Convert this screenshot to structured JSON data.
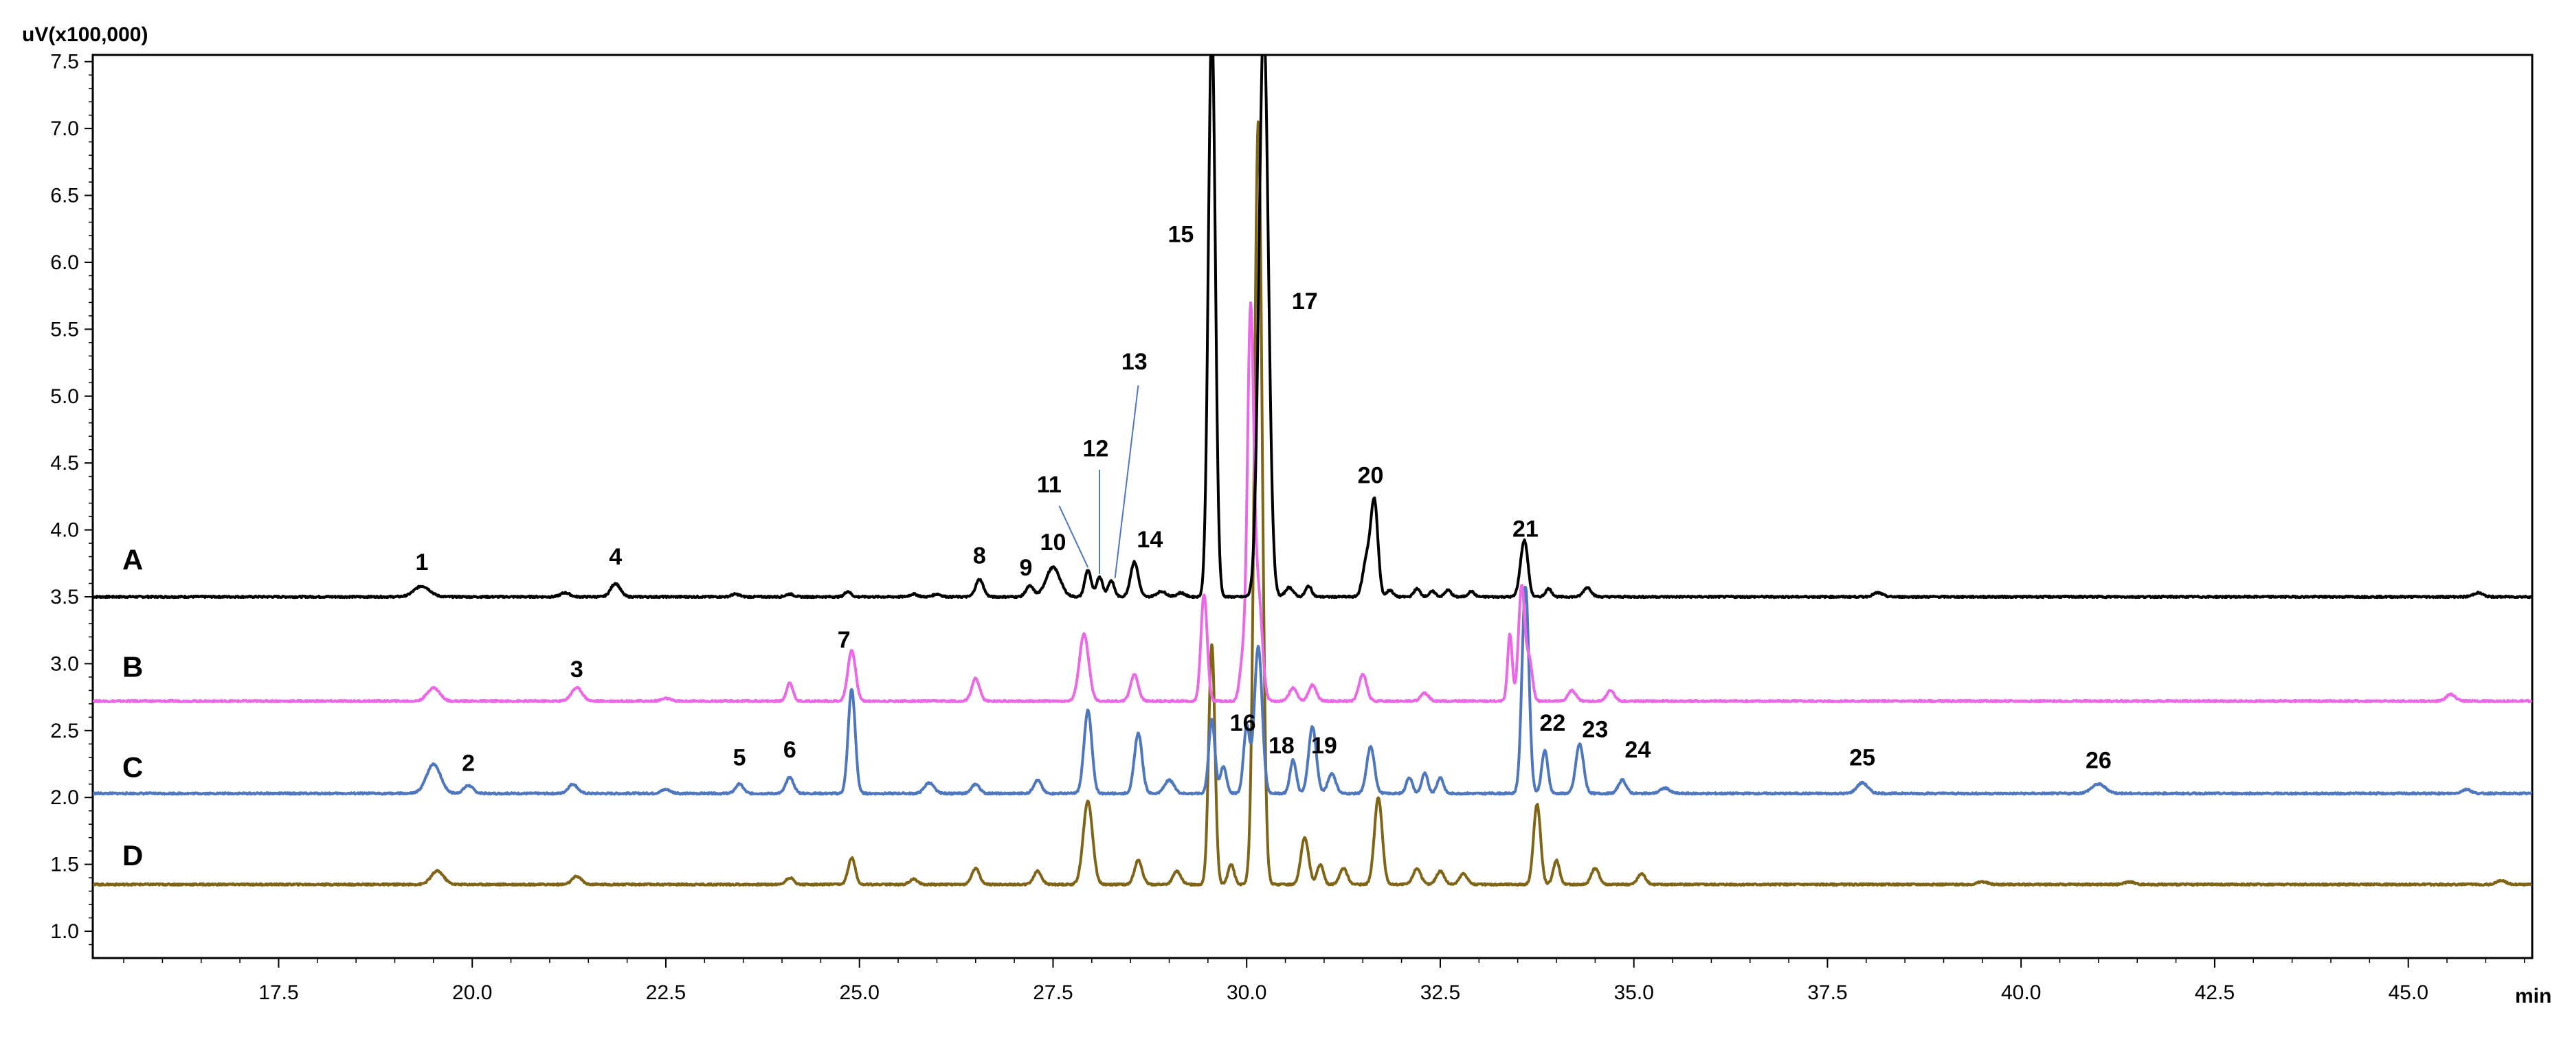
{
  "chart_data": {
    "type": "line",
    "y_unit_label": "uV(x100,000)",
    "x_unit_label": "min",
    "xlim": [
      15.1,
      46.6
    ],
    "ylim": [
      0.8,
      7.55
    ],
    "x_ticks": [
      17.5,
      20.0,
      22.5,
      25.0,
      27.5,
      30.0,
      32.5,
      35.0,
      37.5,
      40.0,
      42.5,
      45.0
    ],
    "x_tick_labels": [
      "17.5",
      "20.0",
      "22.5",
      "25.0",
      "27.5",
      "30.0",
      "32.5",
      "35.0",
      "37.5",
      "40.0",
      "42.5",
      "45.0"
    ],
    "y_ticks": [
      1.0,
      1.5,
      2.0,
      2.5,
      3.0,
      3.5,
      4.0,
      4.5,
      5.0,
      5.5,
      6.0,
      6.5,
      7.0,
      7.5
    ],
    "y_tick_labels": [
      "1.0",
      "1.5",
      "2.0",
      "2.5",
      "3.0",
      "3.5",
      "4.0",
      "4.5",
      "5.0",
      "5.5",
      "6.0",
      "6.5",
      "7.0",
      "7.5"
    ],
    "grid": false,
    "legend": "none",
    "series": [
      {
        "name": "A",
        "color": "#000000",
        "baseline": 3.5,
        "peaks": [
          [
            19.35,
            0.08,
            0.1
          ],
          [
            21.2,
            0.03,
            0.06
          ],
          [
            21.85,
            0.1,
            0.06
          ],
          [
            23.4,
            0.02,
            0.05
          ],
          [
            24.1,
            0.02,
            0.05
          ],
          [
            24.85,
            0.04,
            0.04
          ],
          [
            25.7,
            0.02,
            0.05
          ],
          [
            26.0,
            0.02,
            0.05
          ],
          [
            26.55,
            0.13,
            0.05
          ],
          [
            27.2,
            0.08,
            0.05
          ],
          [
            27.5,
            0.22,
            0.09
          ],
          [
            27.95,
            0.2,
            0.04
          ],
          [
            28.1,
            0.15,
            0.04
          ],
          [
            28.25,
            0.12,
            0.04
          ],
          [
            28.55,
            0.26,
            0.05
          ],
          [
            28.9,
            0.04,
            0.06
          ],
          [
            29.15,
            0.03,
            0.05
          ],
          [
            29.55,
            4.3,
            0.045
          ],
          [
            30.22,
            4.3,
            0.06
          ],
          [
            30.55,
            0.07,
            0.05
          ],
          [
            30.8,
            0.08,
            0.04
          ],
          [
            31.55,
            0.28,
            0.05
          ],
          [
            31.65,
            0.7,
            0.045
          ],
          [
            31.85,
            0.05,
            0.04
          ],
          [
            32.2,
            0.06,
            0.04
          ],
          [
            32.4,
            0.04,
            0.04
          ],
          [
            32.6,
            0.05,
            0.04
          ],
          [
            32.9,
            0.04,
            0.04
          ],
          [
            33.55,
            0.18,
            0.04
          ],
          [
            33.6,
            0.32,
            0.04
          ],
          [
            33.9,
            0.06,
            0.04
          ],
          [
            34.4,
            0.07,
            0.05
          ],
          [
            38.15,
            0.03,
            0.06
          ],
          [
            45.9,
            0.03,
            0.06
          ]
        ]
      },
      {
        "name": "B",
        "color": "#EB69E6",
        "baseline": 2.72,
        "peaks": [
          [
            19.5,
            0.1,
            0.08
          ],
          [
            21.35,
            0.1,
            0.07
          ],
          [
            22.5,
            0.02,
            0.06
          ],
          [
            24.1,
            0.14,
            0.04
          ],
          [
            24.9,
            0.38,
            0.05
          ],
          [
            26.5,
            0.17,
            0.05
          ],
          [
            27.9,
            0.5,
            0.06
          ],
          [
            28.55,
            0.2,
            0.05
          ],
          [
            29.45,
            0.8,
            0.04
          ],
          [
            29.95,
            0.3,
            0.04
          ],
          [
            30.05,
            2.85,
            0.04
          ],
          [
            30.15,
            0.8,
            0.05
          ],
          [
            30.6,
            0.1,
            0.05
          ],
          [
            30.85,
            0.12,
            0.05
          ],
          [
            31.5,
            0.2,
            0.05
          ],
          [
            32.3,
            0.06,
            0.05
          ],
          [
            33.4,
            0.5,
            0.03
          ],
          [
            33.55,
            0.85,
            0.04
          ],
          [
            33.65,
            0.3,
            0.04
          ],
          [
            34.2,
            0.08,
            0.05
          ],
          [
            34.7,
            0.08,
            0.05
          ],
          [
            45.55,
            0.05,
            0.06
          ]
        ]
      },
      {
        "name": "C",
        "color": "#4F77BE",
        "baseline": 2.03,
        "peaks": [
          [
            19.5,
            0.22,
            0.09
          ],
          [
            19.95,
            0.06,
            0.06
          ],
          [
            21.3,
            0.07,
            0.06
          ],
          [
            22.5,
            0.03,
            0.06
          ],
          [
            23.45,
            0.07,
            0.05
          ],
          [
            24.1,
            0.12,
            0.05
          ],
          [
            24.9,
            0.78,
            0.045
          ],
          [
            25.9,
            0.08,
            0.06
          ],
          [
            26.5,
            0.07,
            0.05
          ],
          [
            27.3,
            0.1,
            0.05
          ],
          [
            27.95,
            0.62,
            0.05
          ],
          [
            28.6,
            0.45,
            0.05
          ],
          [
            29.0,
            0.1,
            0.06
          ],
          [
            29.55,
            0.55,
            0.04
          ],
          [
            29.7,
            0.2,
            0.04
          ],
          [
            30.0,
            0.5,
            0.04
          ],
          [
            30.15,
            1.1,
            0.05
          ],
          [
            30.6,
            0.25,
            0.04
          ],
          [
            30.85,
            0.5,
            0.05
          ],
          [
            31.1,
            0.15,
            0.05
          ],
          [
            31.6,
            0.35,
            0.05
          ],
          [
            32.1,
            0.12,
            0.04
          ],
          [
            32.3,
            0.15,
            0.04
          ],
          [
            32.5,
            0.12,
            0.04
          ],
          [
            33.6,
            1.55,
            0.045
          ],
          [
            33.85,
            0.32,
            0.04
          ],
          [
            34.3,
            0.37,
            0.05
          ],
          [
            34.85,
            0.1,
            0.05
          ],
          [
            35.4,
            0.04,
            0.06
          ],
          [
            37.95,
            0.08,
            0.07
          ],
          [
            41.0,
            0.07,
            0.09
          ],
          [
            45.75,
            0.03,
            0.06
          ]
        ]
      },
      {
        "name": "D",
        "color": "#7F6515",
        "baseline": 1.35,
        "peaks": [
          [
            19.55,
            0.1,
            0.08
          ],
          [
            21.35,
            0.06,
            0.06
          ],
          [
            24.1,
            0.05,
            0.05
          ],
          [
            24.9,
            0.2,
            0.045
          ],
          [
            25.7,
            0.04,
            0.05
          ],
          [
            26.5,
            0.12,
            0.05
          ],
          [
            27.3,
            0.1,
            0.05
          ],
          [
            27.95,
            0.62,
            0.06
          ],
          [
            28.6,
            0.18,
            0.05
          ],
          [
            29.1,
            0.1,
            0.05
          ],
          [
            29.55,
            1.8,
            0.04
          ],
          [
            29.8,
            0.15,
            0.04
          ],
          [
            30.15,
            5.7,
            0.05
          ],
          [
            30.75,
            0.35,
            0.05
          ],
          [
            30.95,
            0.15,
            0.04
          ],
          [
            31.25,
            0.12,
            0.05
          ],
          [
            31.7,
            0.65,
            0.05
          ],
          [
            32.2,
            0.12,
            0.05
          ],
          [
            32.5,
            0.1,
            0.05
          ],
          [
            32.8,
            0.08,
            0.05
          ],
          [
            33.75,
            0.6,
            0.045
          ],
          [
            34.0,
            0.18,
            0.04
          ],
          [
            34.5,
            0.12,
            0.05
          ],
          [
            35.1,
            0.08,
            0.05
          ],
          [
            39.5,
            0.02,
            0.06
          ],
          [
            41.4,
            0.02,
            0.06
          ],
          [
            46.2,
            0.03,
            0.06
          ]
        ]
      }
    ],
    "trace_labels": [
      {
        "text": "A",
        "y": 3.78
      },
      {
        "text": "B",
        "y": 2.98
      },
      {
        "text": "C",
        "y": 2.23
      },
      {
        "text": "D",
        "y": 1.57
      }
    ],
    "peak_labels": [
      {
        "text": "1",
        "x": 19.35,
        "y": 3.7
      },
      {
        "text": "2",
        "x": 19.95,
        "y": 2.2
      },
      {
        "text": "3",
        "x": 21.35,
        "y": 2.9
      },
      {
        "text": "4",
        "x": 21.85,
        "y": 3.74
      },
      {
        "text": "5",
        "x": 23.45,
        "y": 2.24
      },
      {
        "text": "6",
        "x": 24.1,
        "y": 2.3
      },
      {
        "text": "7",
        "x": 24.8,
        "y": 3.12
      },
      {
        "text": "8",
        "x": 26.55,
        "y": 3.75
      },
      {
        "text": "9",
        "x": 27.15,
        "y": 3.66
      },
      {
        "text": "10",
        "x": 27.5,
        "y": 3.85
      },
      {
        "text": "11",
        "x": 27.45,
        "y": 4.28
      },
      {
        "text": "12",
        "x": 28.05,
        "y": 4.55
      },
      {
        "text": "13",
        "x": 28.55,
        "y": 5.2
      },
      {
        "text": "14",
        "x": 28.75,
        "y": 3.87
      },
      {
        "text": "15",
        "x": 29.15,
        "y": 6.15
      },
      {
        "text": "16",
        "x": 29.95,
        "y": 2.5
      },
      {
        "text": "17",
        "x": 30.75,
        "y": 5.65
      },
      {
        "text": "18",
        "x": 30.45,
        "y": 2.33
      },
      {
        "text": "19",
        "x": 31.0,
        "y": 2.33
      },
      {
        "text": "20",
        "x": 31.6,
        "y": 4.35
      },
      {
        "text": "21",
        "x": 33.6,
        "y": 3.95
      },
      {
        "text": "22",
        "x": 33.95,
        "y": 2.5
      },
      {
        "text": "23",
        "x": 34.5,
        "y": 2.45
      },
      {
        "text": "24",
        "x": 35.05,
        "y": 2.3
      },
      {
        "text": "25",
        "x": 37.95,
        "y": 2.24
      },
      {
        "text": "26",
        "x": 41.0,
        "y": 2.22
      }
    ]
  }
}
